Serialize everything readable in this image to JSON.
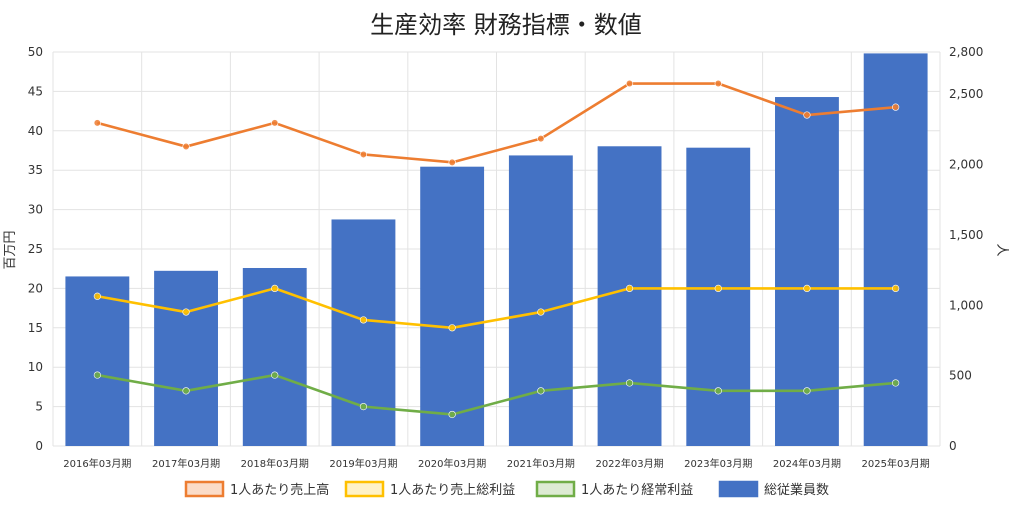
{
  "chart_data": {
    "type": "bar",
    "title": "生産効率 財務指標・数値",
    "categories": [
      "2016年03月期",
      "2017年03月期",
      "2018年03月期",
      "2019年03月期",
      "2020年03月期",
      "2021年03月期",
      "2022年03月期",
      "2023年03月期",
      "2024年03月期",
      "2025年03月期"
    ],
    "ylabel": "百万円",
    "y2label": "人",
    "ylim": [
      0,
      50
    ],
    "y2lim": [
      0,
      2800
    ],
    "yticks": [
      "0",
      "5",
      "10",
      "15",
      "20",
      "25",
      "30",
      "35",
      "40",
      "45",
      "50"
    ],
    "y2ticks": [
      "0",
      "500",
      "1,000",
      "1,500",
      "2,000",
      "2,500",
      "2,800"
    ],
    "grid": true,
    "legend_position": "bottom",
    "series": [
      {
        "name": "1人あたり売上高",
        "type": "line",
        "axis": "left",
        "color": "#ED7D31",
        "values": [
          41,
          38,
          41,
          37,
          36,
          39,
          46,
          46,
          42,
          43
        ]
      },
      {
        "name": "1人あたり売上総利益",
        "type": "line",
        "axis": "left",
        "color": "#FFC000",
        "values": [
          19,
          17,
          20,
          16,
          15,
          17,
          20,
          20,
          20,
          20
        ]
      },
      {
        "name": "1人あたり経常利益",
        "type": "line",
        "axis": "left",
        "color": "#70AD47",
        "values": [
          9,
          7,
          9,
          5,
          4,
          7,
          8,
          7,
          7,
          8
        ]
      },
      {
        "name": "総従業員数",
        "type": "bar",
        "axis": "right",
        "color": "#4472C4",
        "values": [
          1205,
          1245,
          1265,
          1610,
          1985,
          2065,
          2130,
          2120,
          2480,
          2790
        ]
      }
    ]
  }
}
